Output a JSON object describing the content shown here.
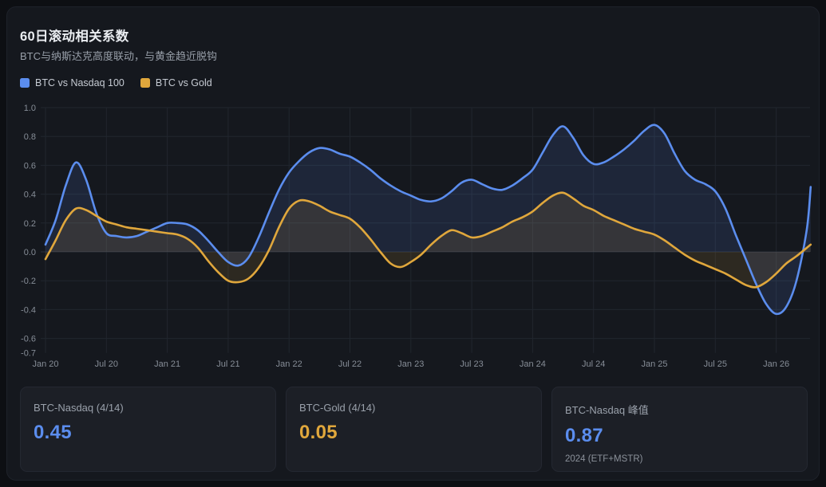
{
  "panel": {
    "title": "60日滚动相关系数",
    "subtitle": "BTC与纳斯达克高度联动，与黄金趋近脱钩"
  },
  "colors": {
    "nasdaq_blue": "#5b8dee",
    "gold_yellow": "#e0a73c",
    "grid": "#21262e",
    "zero_line": "#2b313a",
    "axis_text": "#868d97"
  },
  "chart_data": {
    "type": "line",
    "title": "60日滚动相关系数",
    "xlabel": "",
    "ylabel": "",
    "x_tick_labels": [
      "Jan 20",
      "Jul 20",
      "Jan 21",
      "Jul 21",
      "Jan 22",
      "Jul 22",
      "Jan 23",
      "Jul 23",
      "Jan 24",
      "Jul 24",
      "Jan 25",
      "Jul 25",
      "Jan 26"
    ],
    "x_tick_month_index": [
      0,
      6,
      12,
      18,
      24,
      30,
      36,
      42,
      48,
      54,
      60,
      66,
      72
    ],
    "y_tick_labels": [
      "1.0",
      "0.8",
      "0.6",
      "0.4",
      "0.2",
      "0.0",
      "-0.2",
      "-0.4",
      "-0.6",
      "-0.7"
    ],
    "ylim": [
      -0.7,
      1.0
    ],
    "grid": true,
    "legend_position": "top-left",
    "series": [
      {
        "name": "BTC vs Nasdaq 100",
        "color": "#5b8dee",
        "area_opacity": 0.13,
        "points": [
          [
            0,
            0.05
          ],
          [
            1,
            0.22
          ],
          [
            2,
            0.46
          ],
          [
            3,
            0.62
          ],
          [
            4,
            0.5
          ],
          [
            5,
            0.27
          ],
          [
            6,
            0.13
          ],
          [
            7,
            0.11
          ],
          [
            8,
            0.1
          ],
          [
            9,
            0.11
          ],
          [
            10,
            0.14
          ],
          [
            11,
            0.17
          ],
          [
            12,
            0.2
          ],
          [
            13,
            0.2
          ],
          [
            14,
            0.19
          ],
          [
            15,
            0.15
          ],
          [
            16,
            0.08
          ],
          [
            17,
            0.0
          ],
          [
            18,
            -0.07
          ],
          [
            19,
            -0.095
          ],
          [
            20,
            -0.04
          ],
          [
            21,
            0.1
          ],
          [
            22,
            0.27
          ],
          [
            23,
            0.43
          ],
          [
            24,
            0.55
          ],
          [
            25,
            0.63
          ],
          [
            26,
            0.69
          ],
          [
            27,
            0.72
          ],
          [
            28,
            0.71
          ],
          [
            29,
            0.68
          ],
          [
            30,
            0.66
          ],
          [
            31,
            0.62
          ],
          [
            32,
            0.57
          ],
          [
            33,
            0.51
          ],
          [
            34,
            0.46
          ],
          [
            35,
            0.42
          ],
          [
            36,
            0.39
          ],
          [
            37,
            0.36
          ],
          [
            38,
            0.35
          ],
          [
            39,
            0.37
          ],
          [
            40,
            0.42
          ],
          [
            41,
            0.48
          ],
          [
            42,
            0.5
          ],
          [
            43,
            0.47
          ],
          [
            44,
            0.44
          ],
          [
            45,
            0.43
          ],
          [
            46,
            0.46
          ],
          [
            47,
            0.51
          ],
          [
            48,
            0.57
          ],
          [
            49,
            0.69
          ],
          [
            50,
            0.81
          ],
          [
            51,
            0.87
          ],
          [
            52,
            0.79
          ],
          [
            53,
            0.67
          ],
          [
            54,
            0.61
          ],
          [
            55,
            0.62
          ],
          [
            56,
            0.66
          ],
          [
            57,
            0.71
          ],
          [
            58,
            0.77
          ],
          [
            59,
            0.84
          ],
          [
            60,
            0.88
          ],
          [
            61,
            0.82
          ],
          [
            62,
            0.68
          ],
          [
            63,
            0.56
          ],
          [
            64,
            0.5
          ],
          [
            65,
            0.47
          ],
          [
            66,
            0.42
          ],
          [
            67,
            0.3
          ],
          [
            68,
            0.12
          ],
          [
            69,
            -0.05
          ],
          [
            70,
            -0.22
          ],
          [
            71,
            -0.36
          ],
          [
            72,
            -0.43
          ],
          [
            73,
            -0.38
          ],
          [
            74,
            -0.2
          ],
          [
            75,
            0.15
          ],
          [
            75.4,
            0.45
          ]
        ]
      },
      {
        "name": "BTC vs Gold",
        "color": "#e0a73c",
        "area_opacity": 0.12,
        "points": [
          [
            0,
            -0.05
          ],
          [
            1,
            0.08
          ],
          [
            2,
            0.22
          ],
          [
            3,
            0.3
          ],
          [
            4,
            0.29
          ],
          [
            5,
            0.25
          ],
          [
            6,
            0.21
          ],
          [
            7,
            0.19
          ],
          [
            8,
            0.17
          ],
          [
            9,
            0.16
          ],
          [
            10,
            0.15
          ],
          [
            11,
            0.14
          ],
          [
            12,
            0.13
          ],
          [
            13,
            0.12
          ],
          [
            14,
            0.09
          ],
          [
            15,
            0.03
          ],
          [
            16,
            -0.06
          ],
          [
            17,
            -0.14
          ],
          [
            18,
            -0.2
          ],
          [
            19,
            -0.21
          ],
          [
            20,
            -0.185
          ],
          [
            21,
            -0.11
          ],
          [
            22,
            0.01
          ],
          [
            23,
            0.17
          ],
          [
            24,
            0.3
          ],
          [
            25,
            0.355
          ],
          [
            26,
            0.35
          ],
          [
            27,
            0.32
          ],
          [
            28,
            0.28
          ],
          [
            29,
            0.255
          ],
          [
            30,
            0.23
          ],
          [
            31,
            0.17
          ],
          [
            32,
            0.09
          ],
          [
            33,
            0.0
          ],
          [
            34,
            -0.08
          ],
          [
            35,
            -0.105
          ],
          [
            36,
            -0.07
          ],
          [
            37,
            -0.02
          ],
          [
            38,
            0.05
          ],
          [
            39,
            0.11
          ],
          [
            40,
            0.15
          ],
          [
            41,
            0.13
          ],
          [
            42,
            0.1
          ],
          [
            43,
            0.11
          ],
          [
            44,
            0.14
          ],
          [
            45,
            0.17
          ],
          [
            46,
            0.21
          ],
          [
            47,
            0.24
          ],
          [
            48,
            0.28
          ],
          [
            49,
            0.34
          ],
          [
            50,
            0.39
          ],
          [
            51,
            0.41
          ],
          [
            52,
            0.37
          ],
          [
            53,
            0.32
          ],
          [
            54,
            0.29
          ],
          [
            55,
            0.25
          ],
          [
            56,
            0.22
          ],
          [
            57,
            0.19
          ],
          [
            58,
            0.16
          ],
          [
            59,
            0.14
          ],
          [
            60,
            0.12
          ],
          [
            61,
            0.08
          ],
          [
            62,
            0.03
          ],
          [
            63,
            -0.02
          ],
          [
            64,
            -0.06
          ],
          [
            65,
            -0.09
          ],
          [
            66,
            -0.12
          ],
          [
            67,
            -0.15
          ],
          [
            68,
            -0.19
          ],
          [
            69,
            -0.23
          ],
          [
            70,
            -0.245
          ],
          [
            71,
            -0.21
          ],
          [
            72,
            -0.15
          ],
          [
            73,
            -0.08
          ],
          [
            74,
            -0.03
          ],
          [
            75.4,
            0.05
          ]
        ]
      }
    ]
  },
  "stats": [
    {
      "label": "BTC-Nasdaq (4/14)",
      "value": "0.45",
      "color": "#5b8dee",
      "note": ""
    },
    {
      "label": "BTC-Gold (4/14)",
      "value": "0.05",
      "color": "#e0a73c",
      "note": ""
    },
    {
      "label": "BTC-Nasdaq 峰值",
      "value": "0.87",
      "color": "#5b8dee",
      "note": "2024 (ETF+MSTR)"
    }
  ]
}
